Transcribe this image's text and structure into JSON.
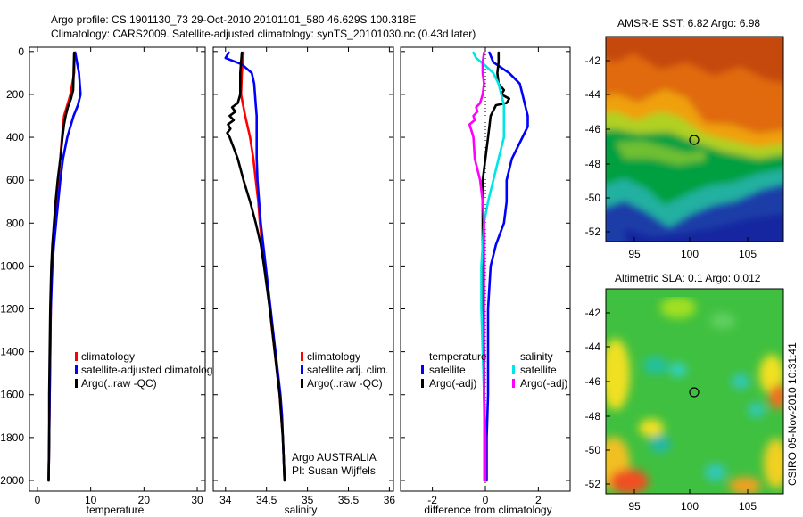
{
  "header": {
    "title_line1": "Argo profile: CS 1901130_73 29-Oct-2010 20101101_580 46.629S 100.318E",
    "title_line2": "Climatology: CARS2009. Satellite-adjusted climatology: synTS_20101030.nc (0.43d later)"
  },
  "footer": {
    "credit": "CSIRO 05-Nov-2010 10:31:41"
  },
  "colors": {
    "climatology": "#ff0000",
    "satellite": "#0000ff",
    "argo": "#000000",
    "satellite_salinity": "#00e5e5",
    "argo_salinity": "#ff00ff"
  },
  "chart_data": [
    {
      "id": "temperature",
      "type": "line",
      "xlabel": "temperature",
      "ylabel": "",
      "xlim": [
        -1.5,
        31.5
      ],
      "ylim": [
        2050,
        -20
      ],
      "xticks": [
        0,
        10,
        20,
        30
      ],
      "xtick_labels": [
        "0",
        "10",
        "20",
        "30"
      ],
      "yticks": [
        0,
        200,
        400,
        600,
        800,
        1000,
        1200,
        1400,
        1600,
        1800,
        2000
      ],
      "ytick_labels": [
        "0",
        "200",
        "400",
        "600",
        "800",
        "1000",
        "1200",
        "1400",
        "1600",
        "1800",
        "2000"
      ],
      "legend": {
        "placement": "lower-left",
        "entries": [
          "climatology",
          "satellite-adjusted climatology",
          "Argo(..raw -QC)"
        ],
        "displayed_entries": [
          "climatology",
          "satellite-adjusted climatolog",
          "Argo(..raw -QC)"
        ]
      },
      "series": [
        {
          "name": "climatology",
          "color": "#ff0000",
          "depth": [
            5,
            100,
            200,
            250,
            300,
            400,
            500,
            600,
            700,
            800,
            900,
            1000,
            1200,
            1400,
            1600,
            1800,
            2000
          ],
          "values": [
            7.0,
            6.9,
            6.2,
            5.6,
            5.0,
            4.6,
            4.3,
            3.9,
            3.5,
            3.2,
            2.9,
            2.7,
            2.5,
            2.4,
            2.3,
            2.2,
            2.1
          ]
        },
        {
          "name": "satellite-adjusted climatology",
          "color": "#0000ff",
          "depth": [
            5,
            100,
            200,
            250,
            300,
            400,
            500,
            600,
            700,
            800,
            900,
            1000,
            1200,
            1400,
            1600,
            1800,
            2000
          ],
          "values": [
            7.1,
            7.8,
            8.1,
            7.6,
            6.8,
            5.6,
            4.8,
            4.3,
            3.9,
            3.5,
            3.1,
            2.8,
            2.5,
            2.4,
            2.3,
            2.2,
            2.1
          ]
        },
        {
          "name": "Argo(..raw -QC)",
          "color": "#000000",
          "depth": [
            5,
            100,
            180,
            220,
            260,
            300,
            340,
            400,
            500,
            600,
            700,
            800,
            900,
            1000,
            1200,
            1400,
            1600,
            1800,
            2000
          ],
          "values": [
            6.9,
            6.8,
            6.7,
            6.3,
            5.7,
            5.3,
            5.0,
            4.7,
            4.3,
            3.8,
            3.4,
            3.1,
            2.8,
            2.6,
            2.4,
            2.3,
            2.2,
            2.2,
            2.1
          ]
        }
      ]
    },
    {
      "id": "salinity",
      "type": "line",
      "xlabel": "salinity",
      "xlim": [
        33.85,
        36.05
      ],
      "ylim": [
        2050,
        -20
      ],
      "xticks": [
        34,
        34.5,
        35,
        35.5,
        36
      ],
      "xtick_labels": [
        "34",
        "34.5",
        "35",
        "35.5",
        "36"
      ],
      "legend": {
        "placement": "lower-right",
        "entries": [
          "climatology",
          "satellite adj. clim.",
          "Argo(..raw -QC)"
        ]
      },
      "annotations": [
        "Argo AUSTRALIA",
        "PI: Susan Wijffels"
      ],
      "series": [
        {
          "name": "climatology",
          "color": "#ff0000",
          "depth": [
            5,
            100,
            200,
            300,
            400,
            500,
            600,
            700,
            800,
            900,
            1000,
            1100,
            1200,
            1300,
            1400,
            1500,
            1600,
            1700,
            1800,
            1900,
            2000
          ],
          "values": [
            34.22,
            34.2,
            34.19,
            34.24,
            34.3,
            34.34,
            34.37,
            34.4,
            34.42,
            34.45,
            34.48,
            34.51,
            34.54,
            34.57,
            34.6,
            34.63,
            34.66,
            34.68,
            34.7,
            34.71,
            34.72
          ]
        },
        {
          "name": "satellite adj. clim.",
          "color": "#0000ff",
          "depth": [
            5,
            30,
            60,
            100,
            150,
            200,
            250,
            300,
            400,
            500,
            600,
            700,
            800,
            900,
            1000,
            1100,
            1200,
            1300,
            1400,
            1500,
            1600,
            1700,
            1800,
            1900,
            2000
          ],
          "values": [
            34.04,
            34.0,
            34.2,
            34.32,
            34.35,
            34.36,
            34.37,
            34.38,
            34.38,
            34.38,
            34.39,
            34.41,
            34.43,
            34.46,
            34.49,
            34.52,
            34.55,
            34.58,
            34.61,
            34.64,
            34.67,
            34.69,
            34.7,
            34.71,
            34.72
          ]
        },
        {
          "name": "Argo(..raw -QC)",
          "color": "#000000",
          "depth": [
            5,
            50,
            100,
            150,
            200,
            240,
            260,
            280,
            300,
            320,
            340,
            360,
            380,
            400,
            450,
            500,
            600,
            700,
            800,
            900,
            1000,
            1200,
            1400,
            1600,
            1800,
            2000
          ],
          "values": [
            34.2,
            34.19,
            34.18,
            34.18,
            34.18,
            34.15,
            34.08,
            34.12,
            34.05,
            34.1,
            34.03,
            34.06,
            34.02,
            34.05,
            34.1,
            34.15,
            34.22,
            34.3,
            34.37,
            34.43,
            34.47,
            34.54,
            34.6,
            34.66,
            34.7,
            34.72
          ]
        }
      ]
    },
    {
      "id": "difference",
      "type": "line",
      "xlabel": "difference from climatology",
      "xlim": [
        -3.2,
        3.2
      ],
      "ylim": [
        2050,
        -20
      ],
      "xticks": [
        -2,
        0,
        2
      ],
      "xtick_labels": [
        "-2",
        "0",
        "2"
      ],
      "zero_line": "dotted",
      "legend": {
        "placement": "lower",
        "groups": [
          {
            "title": "temperature",
            "entries": [
              "satellite",
              "Argo(-adj)"
            ]
          },
          {
            "title": "salinity",
            "entries": [
              "satellite",
              "Argo(-adj)"
            ]
          }
        ]
      },
      "series": [
        {
          "name": "temperature satellite",
          "color": "#0000ff",
          "depth": [
            5,
            50,
            100,
            150,
            200,
            250,
            300,
            350,
            400,
            500,
            600,
            700,
            800,
            900,
            1000,
            1200,
            1400,
            1600,
            1800,
            2000
          ],
          "values": [
            0.15,
            0.3,
            0.9,
            1.3,
            1.4,
            1.5,
            1.6,
            1.6,
            1.4,
            1.0,
            0.8,
            0.8,
            0.7,
            0.4,
            0.2,
            0.1,
            0.1,
            0.1,
            0.05,
            0.05
          ]
        },
        {
          "name": "temperature Argo(-adj)",
          "color": "#000000",
          "depth": [
            5,
            50,
            100,
            150,
            180,
            200,
            220,
            240,
            250,
            300,
            350,
            400,
            500,
            600,
            700,
            800,
            900,
            1000,
            1200,
            1400,
            1600,
            1800,
            2000
          ],
          "values": [
            0.5,
            0.5,
            0.45,
            0.5,
            0.7,
            0.6,
            0.9,
            0.8,
            0.4,
            0.2,
            0.15,
            0.1,
            0.0,
            -0.1,
            -0.1,
            -0.1,
            -0.1,
            -0.1,
            -0.1,
            -0.05,
            -0.05,
            0.0,
            0.0
          ]
        },
        {
          "name": "salinity satellite",
          "color": "#00e5e5",
          "depth": [
            5,
            30,
            60,
            100,
            150,
            200,
            250,
            300,
            400,
            500,
            600,
            700,
            800,
            900,
            1000,
            1200,
            1400,
            1600,
            1800,
            2000
          ],
          "values": [
            -0.45,
            -0.35,
            -0.05,
            0.3,
            0.5,
            0.6,
            0.7,
            0.7,
            0.7,
            0.5,
            0.3,
            0.1,
            -0.05,
            -0.1,
            -0.15,
            -0.15,
            -0.1,
            -0.05,
            -0.05,
            -0.05
          ]
        },
        {
          "name": "salinity Argo(-adj)",
          "color": "#ff00ff",
          "depth": [
            5,
            50,
            100,
            150,
            200,
            240,
            260,
            280,
            300,
            320,
            340,
            360,
            380,
            400,
            500,
            600,
            700,
            800,
            900,
            1000,
            1200,
            1400,
            1600,
            1800,
            2000
          ],
          "values": [
            -0.05,
            -0.1,
            -0.1,
            -0.05,
            -0.1,
            -0.2,
            -0.35,
            -0.3,
            -0.45,
            -0.4,
            -0.6,
            -0.55,
            -0.5,
            -0.45,
            -0.4,
            -0.2,
            -0.1,
            -0.05,
            -0.05,
            -0.05,
            -0.05,
            -0.05,
            -0.05,
            0.0,
            0.0
          ]
        }
      ]
    }
  ],
  "maps": [
    {
      "id": "sst",
      "title": "AMSR-E SST: 6.82  Argo: 6.98",
      "type": "heatmap",
      "lon_ticks": [
        "95",
        "100",
        "105"
      ],
      "lat_ticks": [
        "-42",
        "-44",
        "-46",
        "-48",
        "-50",
        "-52"
      ],
      "marker": {
        "lon": 100.318,
        "lat": -46.629
      }
    },
    {
      "id": "sla",
      "title": "Altimetric SLA: 0.1  Argo: 0.012",
      "type": "heatmap",
      "lon_ticks": [
        "95",
        "100",
        "105"
      ],
      "lat_ticks": [
        "-42",
        "-44",
        "-46",
        "-48",
        "-50",
        "-52"
      ],
      "marker": {
        "lon": 100.318,
        "lat": -46.629
      }
    }
  ]
}
